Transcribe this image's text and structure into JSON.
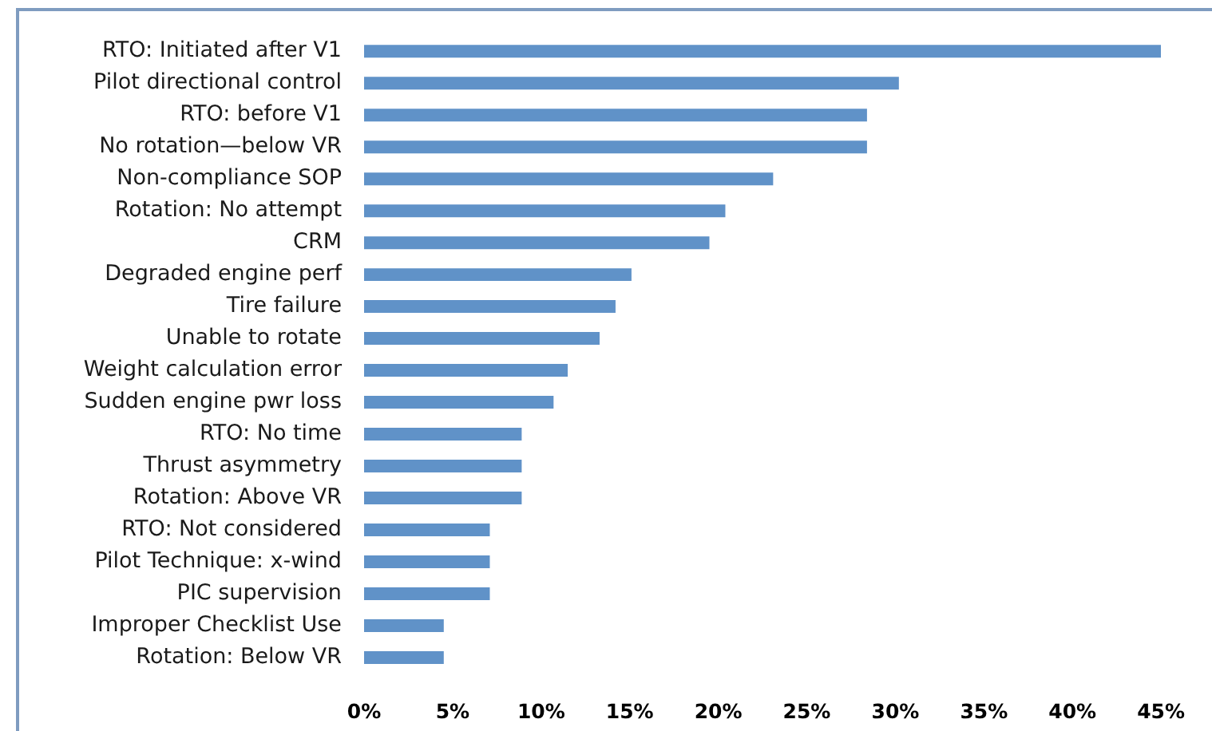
{
  "chart_data": {
    "type": "bar",
    "orientation": "horizontal",
    "categories": [
      "RTO: Initiated after V1",
      "Pilot directional control",
      "RTO: before V1",
      "No rotation—below VR",
      "Non-compliance SOP",
      "Rotation: No attempt",
      "CRM",
      "Degraded engine perf",
      "Tire failure",
      "Unable to rotate",
      "Weight calculation error",
      "Sudden engine pwr loss",
      "RTO: No time",
      "Thrust asymmetry",
      "Rotation: Above VR",
      "RTO: Not considered",
      "Pilot Technique: x-wind",
      "PIC supervision",
      "Improper Checklist Use",
      "Rotation: Below VR"
    ],
    "values": [
      45,
      30.2,
      28.4,
      28.4,
      23.1,
      20.4,
      19.5,
      15.1,
      14.2,
      13.3,
      11.5,
      10.7,
      8.9,
      8.9,
      8.9,
      7.1,
      7.1,
      7.1,
      4.5,
      4.5
    ],
    "color": "#6092c8",
    "xlim": [
      0,
      45
    ],
    "xticks": [
      {
        "value": 0,
        "label": "0%"
      },
      {
        "value": 5,
        "label": "5%"
      },
      {
        "value": 10,
        "label": "10%"
      },
      {
        "value": 15,
        "label": "15%"
      },
      {
        "value": 20,
        "label": "20%"
      },
      {
        "value": 25,
        "label": "25%"
      },
      {
        "value": 30,
        "label": "30%"
      },
      {
        "value": 35,
        "label": "35%"
      },
      {
        "value": 40,
        "label": "40%"
      },
      {
        "value": 45,
        "label": "45%"
      }
    ]
  }
}
